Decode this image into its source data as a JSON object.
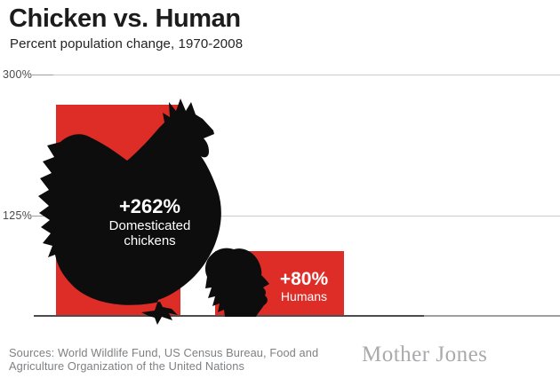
{
  "header": {
    "title": "Chicken vs. Human",
    "subtitle": "Percent population change, 1970-2008"
  },
  "chart_data": {
    "type": "bar",
    "title": "Chicken vs. Human",
    "subtitle": "Percent population change, 1970-2008",
    "categories": [
      "Domesticated chickens",
      "Humans"
    ],
    "values": [
      262,
      80
    ],
    "value_labels": [
      "+262%",
      "+80%"
    ],
    "unit": "percent change 1970-2008",
    "ylim": [
      0,
      330
    ],
    "yticks": [
      {
        "label": "300%",
        "value": 300
      },
      {
        "label": "125%",
        "value": 125
      }
    ],
    "grid": "horizontal",
    "legend": "none",
    "bar_color": "#de2d26",
    "bar_icons": [
      "rooster-silhouette",
      "woman-ponytail-profile-silhouette"
    ]
  },
  "bars": {
    "chicken": {
      "value_label": "+262%",
      "label_line1": "Domesticated",
      "label_line2": "chickens"
    },
    "human": {
      "value_label": "+80%",
      "label": "Humans"
    }
  },
  "footer": {
    "sources_line1": "Sources: World Wildlife Fund, US Census Bureau, Food and",
    "sources_line2": "Agriculture Organization of the United Nations",
    "brand": "Mother Jones"
  },
  "colors": {
    "red": "#de2d26",
    "ink": "#0d0d0d",
    "title": "#1c1c1c",
    "gridline": "#cacbcc",
    "axis_dark": "#4c4c4e",
    "axis_light": "#9da0a2",
    "sources_gray": "#7e8083",
    "brand_gray": "#a8aaad"
  }
}
